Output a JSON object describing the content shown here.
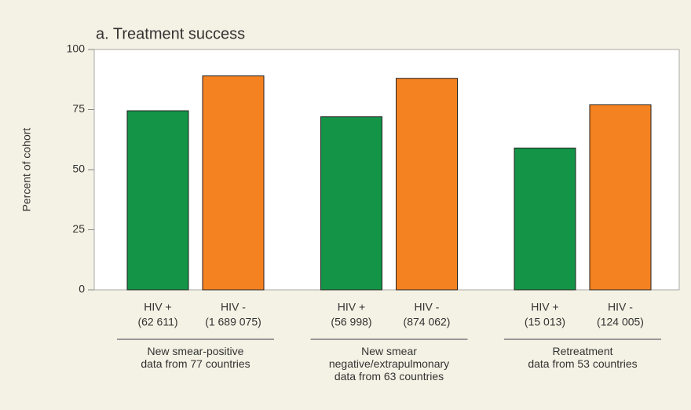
{
  "chart_data": {
    "type": "bar",
    "title": "a. Treatment success",
    "ylabel": "Percent of cohort",
    "categories": [
      "New smear-positive\ndata from 77 countries",
      "New smear\nnegative/extrapulmonary\ndata from 63 countries",
      "Retreatment\ndata from 53 countries"
    ],
    "series": [
      {
        "name": "HIV +",
        "color": "#139447",
        "values": [
          74.5,
          72,
          59
        ],
        "counts": [
          "(62 611)",
          "(56 998)",
          "(15 013)"
        ]
      },
      {
        "name": "HIV -",
        "color": "#f58220",
        "values": [
          89,
          88,
          77
        ],
        "counts": [
          "(1 689 075)",
          "(874 062)",
          "(124 005)"
        ]
      }
    ],
    "ylim": [
      0,
      100
    ],
    "yticks": [
      0,
      25,
      50,
      75,
      100
    ]
  }
}
